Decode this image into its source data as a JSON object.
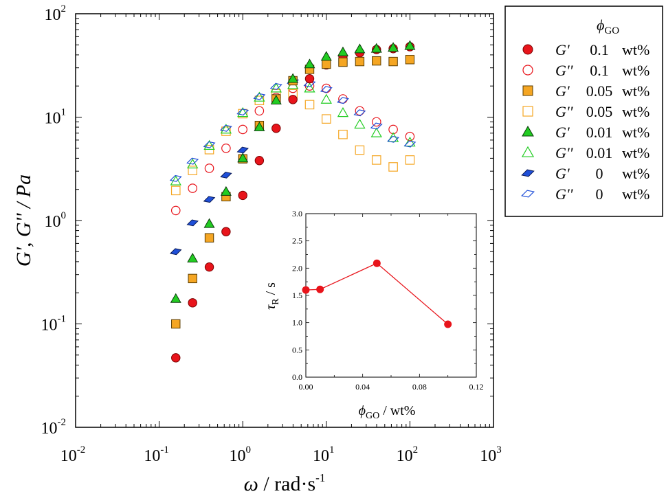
{
  "chart_data": [
    {
      "type": "scatter",
      "xscale": "log",
      "yscale": "log",
      "xlim": [
        0.01,
        1000
      ],
      "ylim": [
        0.01,
        100
      ],
      "x_ticks": [
        {
          "base": "10",
          "exp": "-2",
          "value": 0.01
        },
        {
          "base": "10",
          "exp": "-1",
          "value": 0.1
        },
        {
          "base": "10",
          "exp": "0",
          "value": 1
        },
        {
          "base": "10",
          "exp": "1",
          "value": 10
        },
        {
          "base": "10",
          "exp": "2",
          "value": 100
        },
        {
          "base": "10",
          "exp": "3",
          "value": 1000
        }
      ],
      "y_ticks": [
        {
          "base": "10",
          "exp": "-2",
          "value": 0.01
        },
        {
          "base": "10",
          "exp": "-1",
          "value": 0.1
        },
        {
          "base": "10",
          "exp": "0",
          "value": 1
        },
        {
          "base": "10",
          "exp": "1",
          "value": 10
        },
        {
          "base": "10",
          "exp": "2",
          "value": 100
        }
      ],
      "xlabel": {
        "symbol": "ω",
        "rest": " / rad·s",
        "sup": "-1"
      },
      "ylabel": "G', G'' / Pa",
      "grid": false,
      "legend_position": "outside-right",
      "legend": {
        "title_symbol": "ϕ",
        "title_sub": "GO",
        "entries": [
          {
            "mod": "G'",
            "phi": "0.1",
            "unit": "wt%",
            "series": 0
          },
          {
            "mod": "G''",
            "phi": "0.1",
            "unit": "wt%",
            "series": 1
          },
          {
            "mod": "G'",
            "phi": "0.05",
            "unit": "wt%",
            "series": 2
          },
          {
            "mod": "G''",
            "phi": "0.05",
            "unit": "wt%",
            "series": 3
          },
          {
            "mod": "G'",
            "phi": "0.01",
            "unit": "wt%",
            "series": 4
          },
          {
            "mod": "G''",
            "phi": "0.01",
            "unit": "wt%",
            "series": 5
          },
          {
            "mod": "G'",
            "phi": "0",
            "unit": "wt%",
            "series": 6
          },
          {
            "mod": "G''",
            "phi": "0",
            "unit": "wt%",
            "series": 7
          }
        ]
      },
      "series": [
        {
          "marker": "circle",
          "filled": true,
          "fill": "#e8141b",
          "stroke": "#7a0000",
          "x": [
            0.158,
            0.251,
            0.398,
            0.631,
            1.0,
            1.58,
            2.51,
            3.98,
            6.31,
            10,
            15.8,
            25.1,
            39.8,
            63.1,
            100
          ],
          "y": [
            0.047,
            0.16,
            0.355,
            0.78,
            1.75,
            3.8,
            7.8,
            14.8,
            23.5,
            32,
            39,
            42,
            45,
            46,
            48
          ]
        },
        {
          "marker": "circle",
          "filled": false,
          "stroke": "#e8141b",
          "x": [
            0.158,
            0.251,
            0.398,
            0.631,
            1.0,
            1.58,
            2.51,
            3.98,
            6.31,
            10,
            15.8,
            25.1,
            39.8,
            63.1,
            100
          ],
          "y": [
            1.25,
            2.05,
            3.2,
            5.0,
            7.6,
            11.5,
            15.5,
            19.0,
            20.0,
            19.0,
            15.0,
            11.5,
            9.0,
            7.6,
            6.5
          ]
        },
        {
          "marker": "square",
          "filled": true,
          "fill": "#f5a623",
          "stroke": "#5a3c00",
          "x": [
            0.158,
            0.251,
            0.398,
            0.631,
            1.0,
            1.58,
            2.51,
            3.98,
            6.31,
            10,
            15.8,
            25.1,
            39.8,
            63.1,
            100
          ],
          "y": [
            0.1,
            0.275,
            0.68,
            1.7,
            3.95,
            8.3,
            15.0,
            22.5,
            29.0,
            32.5,
            34.0,
            34.5,
            35.0,
            34.5,
            36.0
          ]
        },
        {
          "marker": "square",
          "filled": false,
          "stroke": "#f5a623",
          "x": [
            0.158,
            0.251,
            0.398,
            0.631,
            1.0,
            1.58,
            2.51,
            3.98,
            6.31,
            10,
            15.8,
            25.1,
            39.8,
            63.1,
            100
          ],
          "y": [
            1.95,
            3.05,
            4.85,
            7.3,
            10.8,
            14.5,
            16.8,
            16.8,
            13.2,
            9.6,
            6.8,
            4.8,
            3.85,
            3.3,
            3.85
          ]
        },
        {
          "marker": "triangle",
          "filled": true,
          "fill": "#22cc22",
          "stroke": "#0a3a0a",
          "x": [
            0.158,
            0.251,
            0.398,
            0.631,
            1.0,
            1.58,
            2.51,
            3.98,
            6.31,
            10,
            15.8,
            25.1,
            39.8,
            63.1,
            100
          ],
          "y": [
            0.175,
            0.43,
            0.93,
            1.9,
            4.0,
            8.0,
            14.5,
            23.5,
            32.5,
            38.5,
            42.5,
            45.5,
            46.0,
            47.0,
            49.0
          ]
        },
        {
          "marker": "triangle",
          "filled": false,
          "stroke": "#22cc22",
          "x": [
            0.158,
            0.251,
            0.398,
            0.631,
            1.0,
            1.58,
            2.51,
            3.98,
            6.31,
            10,
            15.8,
            25.1,
            39.8,
            63.1,
            100
          ],
          "y": [
            2.4,
            3.5,
            5.3,
            7.6,
            11.0,
            15.5,
            19.0,
            20.5,
            19.0,
            14.8,
            11.0,
            8.5,
            7.0,
            6.3,
            5.7
          ]
        },
        {
          "marker": "diamond",
          "filled": true,
          "fill": "#1f4fd8",
          "stroke": "#0a1a55",
          "x": [
            0.158,
            0.251,
            0.398,
            0.631,
            1.0
          ],
          "y": [
            0.5,
            0.95,
            1.6,
            2.75,
            4.8
          ]
        },
        {
          "marker": "diamond",
          "filled": false,
          "stroke": "#1f4fd8",
          "x": [
            0.158,
            0.251,
            0.398,
            0.631,
            1.0,
            1.58,
            2.51,
            3.98,
            6.31,
            10,
            15.8,
            25.1,
            39.8,
            63.1,
            100
          ],
          "y": [
            2.55,
            3.75,
            5.4,
            7.8,
            11.2,
            15.8,
            19.8,
            22.0,
            21.0,
            18.5,
            14.5,
            11.0,
            8.2,
            6.1,
            5.5
          ]
        }
      ]
    },
    {
      "type": "line",
      "xlim": [
        0,
        0.12
      ],
      "ylim": [
        0,
        3.0
      ],
      "x_ticks": [
        "0.00",
        "0.04",
        "0.08",
        "0.12"
      ],
      "y_ticks": [
        "0.0",
        "0.5",
        "1.0",
        "1.5",
        "2.0",
        "2.5",
        "3.0"
      ],
      "xlabel": {
        "symbol": "ϕ",
        "sub": "GO",
        "rest": " / wt%"
      },
      "ylabel": {
        "symbol": "τ",
        "sub": "R",
        "rest": " / s"
      },
      "grid": false,
      "color": "#e8141b",
      "series": [
        {
          "x": [
            0,
            0.01,
            0.05,
            0.1
          ],
          "y": [
            1.6,
            1.61,
            2.09,
            0.97
          ]
        }
      ]
    }
  ]
}
